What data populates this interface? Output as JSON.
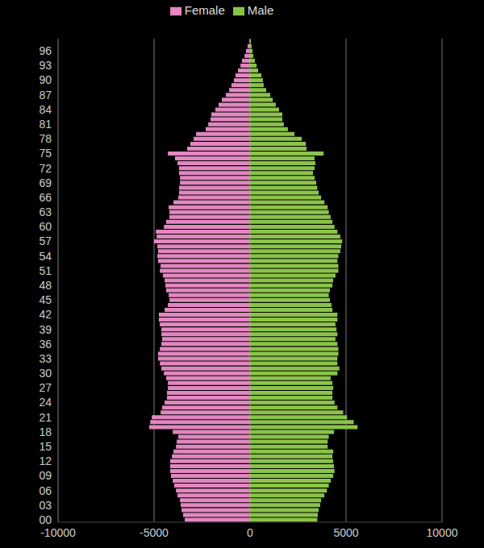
{
  "chart_data": {
    "type": "bar",
    "orientation": "horizontal",
    "stacked": true,
    "grid": true,
    "legend": "top",
    "categories": [
      "00",
      null,
      null,
      "03",
      null,
      null,
      "06",
      null,
      null,
      "09",
      null,
      null,
      "12",
      null,
      null,
      "15",
      null,
      null,
      "18",
      null,
      null,
      "21",
      null,
      null,
      "24",
      null,
      null,
      "27",
      null,
      null,
      "30",
      null,
      null,
      "33",
      null,
      null,
      "36",
      null,
      null,
      "39",
      null,
      null,
      "42",
      null,
      null,
      "45",
      null,
      null,
      "48",
      null,
      null,
      "51",
      null,
      null,
      "54",
      null,
      null,
      "57",
      null,
      null,
      "60",
      null,
      null,
      "63",
      null,
      null,
      "66",
      null,
      null,
      "69",
      null,
      null,
      "72",
      null,
      null,
      "75",
      null,
      null,
      "78",
      null,
      null,
      "81",
      null,
      null,
      "84",
      null,
      null,
      "87",
      null,
      null,
      "90",
      null,
      null,
      "93",
      null,
      null,
      "96",
      null,
      null
    ],
    "series": [
      {
        "name": "Female",
        "color": "#e287c0",
        "values": [
          -3400,
          -3490,
          -3570,
          -3610,
          -3650,
          -3780,
          -3860,
          -3950,
          -4030,
          -4120,
          -4160,
          -4160,
          -4160,
          -4070,
          -3990,
          -3860,
          -3820,
          -3740,
          -4030,
          -5250,
          -5200,
          -5120,
          -4660,
          -4580,
          -4450,
          -4330,
          -4330,
          -4280,
          -4280,
          -4370,
          -4490,
          -4620,
          -4700,
          -4790,
          -4790,
          -4700,
          -4620,
          -4580,
          -4620,
          -4620,
          -4700,
          -4750,
          -4750,
          -4450,
          -4280,
          -4200,
          -4240,
          -4370,
          -4410,
          -4450,
          -4540,
          -4700,
          -4660,
          -4790,
          -4830,
          -4790,
          -4830,
          -5000,
          -4870,
          -4910,
          -4490,
          -4370,
          -4200,
          -4200,
          -4240,
          -3990,
          -3740,
          -3700,
          -3700,
          -3650,
          -3650,
          -3700,
          -3700,
          -3780,
          -3910,
          -4280,
          -3280,
          -3110,
          -2940,
          -2810,
          -2310,
          -2180,
          -2060,
          -2020,
          -1810,
          -1640,
          -1470,
          -1260,
          -1090,
          -970,
          -840,
          -760,
          -630,
          -500,
          -420,
          -290,
          -210,
          -130,
          -40
        ]
      },
      {
        "name": "Male",
        "color": "#8bc34a",
        "values": [
          3500,
          3530,
          3570,
          3650,
          3700,
          3870,
          4000,
          4100,
          4200,
          4330,
          4400,
          4370,
          4330,
          4290,
          4330,
          4040,
          4040,
          4100,
          4370,
          5600,
          5400,
          5050,
          4850,
          4550,
          4400,
          4290,
          4290,
          4330,
          4290,
          4200,
          4550,
          4650,
          4550,
          4550,
          4600,
          4600,
          4550,
          4450,
          4550,
          4500,
          4450,
          4550,
          4550,
          4290,
          4240,
          4160,
          4100,
          4160,
          4290,
          4330,
          4450,
          4600,
          4600,
          4550,
          4600,
          4700,
          4750,
          4800,
          4700,
          4550,
          4400,
          4290,
          4200,
          4100,
          4040,
          3870,
          3700,
          3570,
          3500,
          3450,
          3360,
          3280,
          3360,
          3400,
          3360,
          3830,
          2940,
          2900,
          2690,
          2310,
          1970,
          1760,
          1680,
          1680,
          1510,
          1340,
          1180,
          1050,
          840,
          710,
          670,
          590,
          420,
          340,
          250,
          170,
          130,
          80,
          40
        ]
      }
    ],
    "xlim": [
      -10000,
      10000
    ],
    "xticks": [
      -10000,
      -5000,
      0,
      5000,
      10000
    ]
  }
}
